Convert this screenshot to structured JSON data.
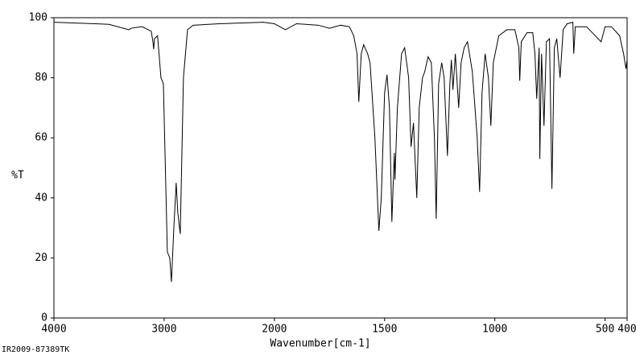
{
  "chart_data": {
    "type": "line",
    "xlabel": "Wavenumber[cm-1]",
    "ylabel": "%T",
    "footnote": "IR2009-87389TK",
    "xlim": [
      4000,
      400
    ],
    "ylim": [
      0,
      100
    ],
    "xticks": [
      4000,
      3000,
      2000,
      1500,
      1000,
      500,
      400
    ],
    "yticks": [
      0,
      20,
      40,
      60,
      80,
      100
    ],
    "x_break": 2000,
    "x_break_factor": 2,
    "series": [
      {
        "name": "%T",
        "color": "#000000",
        "x": [
          4000,
          3500,
          3320,
          3300,
          3200,
          3117,
          3102,
          3095,
          3088,
          3060,
          3029,
          3007,
          2971,
          2949,
          2934,
          2912,
          2891,
          2876,
          2854,
          2825,
          2788,
          2737,
          2500,
          2100,
          2000,
          1950,
          1900,
          1800,
          1750,
          1700,
          1660,
          1640,
          1625,
          1617,
          1606,
          1595,
          1577,
          1566,
          1544,
          1526,
          1515,
          1500,
          1489,
          1478,
          1467,
          1456,
          1453,
          1442,
          1423,
          1409,
          1391,
          1380,
          1369,
          1354,
          1343,
          1328,
          1318,
          1303,
          1288,
          1274,
          1266,
          1255,
          1241,
          1230,
          1215,
          1204,
          1197,
          1190,
          1179,
          1164,
          1153,
          1139,
          1124,
          1102,
          1080,
          1069,
          1058,
          1044,
          1029,
          1018,
          1007,
          982,
          945,
          909,
          891,
          887,
          880,
          854,
          828,
          818,
          810,
          799,
          796,
          788,
          777,
          766,
          752,
          741,
          730,
          719,
          704,
          690,
          672,
          646,
          642,
          635,
          584,
          518,
          500,
          471,
          434,
          416,
          405,
          400
        ],
        "values": [
          98.5,
          97.8,
          96,
          96.5,
          97,
          95.5,
          92,
          89.5,
          93,
          94,
          80,
          78,
          22,
          20,
          12,
          30,
          45,
          35,
          28,
          80,
          96,
          97.5,
          98,
          98.5,
          98,
          96,
          98,
          97.5,
          96.5,
          97.5,
          97,
          94,
          88,
          72,
          88,
          91,
          88,
          85,
          60,
          29,
          40,
          75,
          81,
          70,
          32,
          55,
          46,
          70,
          88,
          90,
          80,
          57,
          65,
          40,
          70,
          80,
          82,
          87,
          85,
          60,
          33,
          78,
          85,
          80,
          54,
          78,
          86,
          76,
          88,
          70,
          85,
          90,
          92,
          82,
          60,
          42,
          75,
          88,
          80,
          64,
          85,
          94,
          96,
          96,
          90,
          79,
          92,
          95,
          95,
          88,
          73,
          90,
          53,
          88,
          64,
          92,
          93,
          43,
          90,
          93,
          80,
          96,
          98,
          98.5,
          88,
          97,
          97,
          92,
          97,
          97,
          94,
          88,
          83,
          86
        ]
      }
    ]
  }
}
